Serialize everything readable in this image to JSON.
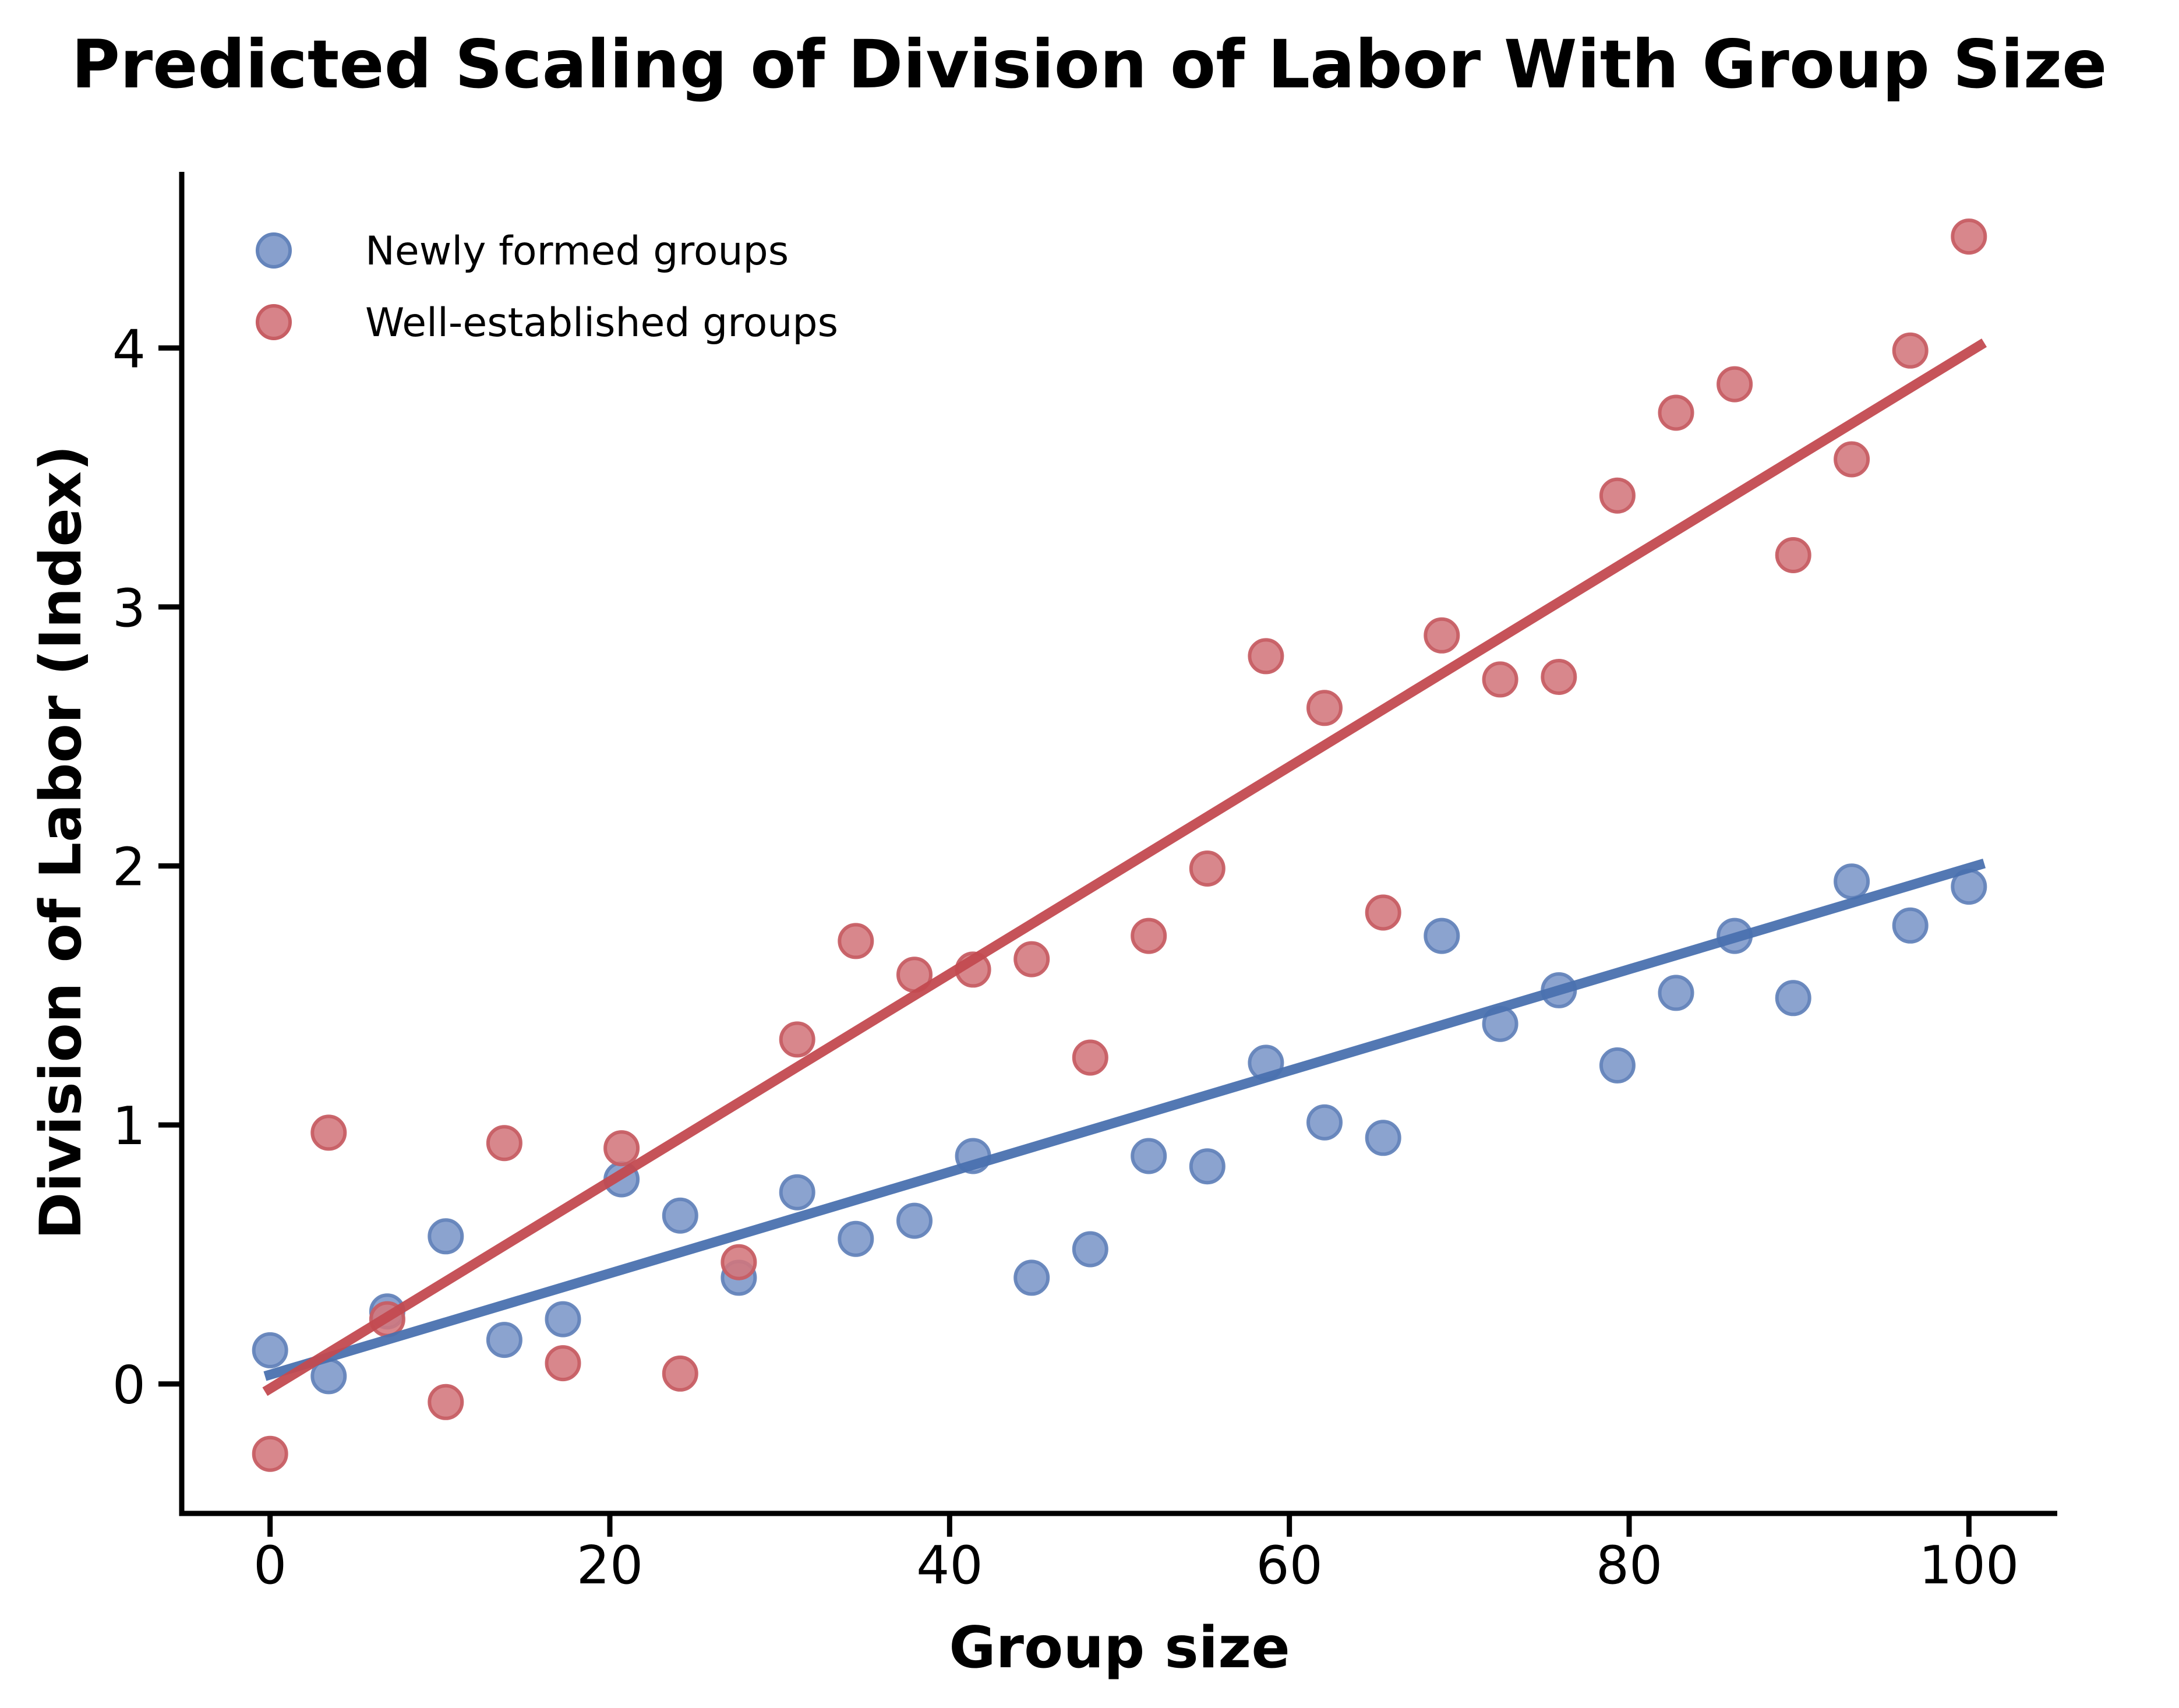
{
  "chart_data": {
    "type": "scatter",
    "title": "Predicted Scaling of Division of Labor With Group Size",
    "xlabel": "Group size",
    "ylabel": "Division of Labor (Index)",
    "xlim": [
      -5.2,
      105.2
    ],
    "ylim": [
      -0.5,
      4.68
    ],
    "xticks": [
      0,
      20,
      40,
      60,
      80,
      100
    ],
    "yticks": [
      0,
      1,
      2,
      3,
      4
    ],
    "grid": false,
    "legend_position": "upper-left",
    "background_color": "#ffffff",
    "axis_color": "#000000",
    "series": [
      {
        "name": "Newly formed groups",
        "marker_fill": "#7b96c8",
        "marker_edge": "#6484bb",
        "line_color": "#4a71af",
        "x": [
          0,
          3.45,
          6.9,
          10.34,
          13.79,
          17.24,
          20.69,
          24.14,
          27.59,
          31.03,
          34.48,
          37.93,
          41.38,
          44.83,
          48.28,
          51.72,
          55.17,
          58.62,
          62.07,
          65.52,
          68.97,
          72.41,
          75.86,
          79.31,
          82.76,
          86.21,
          89.66,
          93.1,
          96.55,
          100
        ],
        "y": [
          0.13,
          0.03,
          0.28,
          0.57,
          0.17,
          0.25,
          0.79,
          0.65,
          0.41,
          0.74,
          0.56,
          0.63,
          0.88,
          0.41,
          0.52,
          0.88,
          0.84,
          1.24,
          1.01,
          0.95,
          1.73,
          1.39,
          1.52,
          1.23,
          1.51,
          1.73,
          1.49,
          1.94,
          1.77,
          1.92
        ],
        "trendline": {
          "x1": -0.3,
          "y1": 0.03,
          "x2": 100.9,
          "y2": 2.01
        }
      },
      {
        "name": "Well-established groups",
        "marker_fill": "#d3767c",
        "marker_edge": "#c75e64",
        "line_color": "#c34a50",
        "x": [
          0,
          3.45,
          6.9,
          10.34,
          13.79,
          17.24,
          20.69,
          24.14,
          27.59,
          31.03,
          34.48,
          37.93,
          41.38,
          44.83,
          48.28,
          51.72,
          55.17,
          58.62,
          62.07,
          65.52,
          68.97,
          72.41,
          75.86,
          79.31,
          82.76,
          86.21,
          89.66,
          93.1,
          96.55,
          100
        ],
        "y": [
          -0.27,
          0.97,
          0.25,
          -0.07,
          0.93,
          0.08,
          0.91,
          0.04,
          0.47,
          1.33,
          1.71,
          1.58,
          1.6,
          1.64,
          1.26,
          1.73,
          1.99,
          2.81,
          2.61,
          1.82,
          2.89,
          2.72,
          2.73,
          3.43,
          3.75,
          3.86,
          3.2,
          3.57,
          3.99,
          4.43
        ],
        "trendline": {
          "x1": -0.3,
          "y1": -0.03,
          "x2": 100.9,
          "y2": 4.02
        }
      }
    ]
  }
}
